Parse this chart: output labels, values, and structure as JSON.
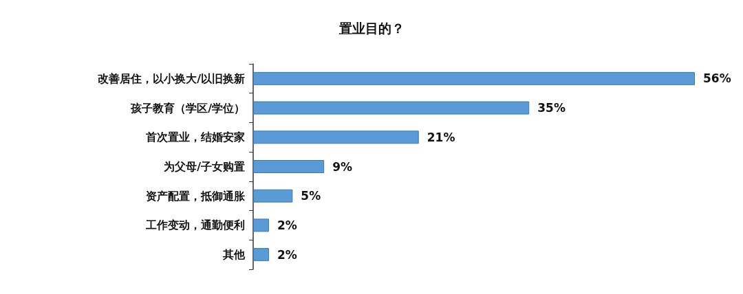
{
  "chart_data": {
    "type": "bar",
    "orientation": "horizontal",
    "title": "置业目的？",
    "categories": [
      "改善居住，以小换大/以旧换新",
      "孩子教育（学区/学位）",
      "首次置业，结婚安家",
      "为父母/子女购置",
      "资产配置，抵御通胀",
      "工作变动，通勤便利",
      "其他"
    ],
    "values": [
      56,
      35,
      21,
      9,
      5,
      2,
      2
    ],
    "value_labels": [
      "56%",
      "35%",
      "21%",
      "9%",
      "5%",
      "2%",
      "2%"
    ],
    "color": "#5b9bd5"
  }
}
